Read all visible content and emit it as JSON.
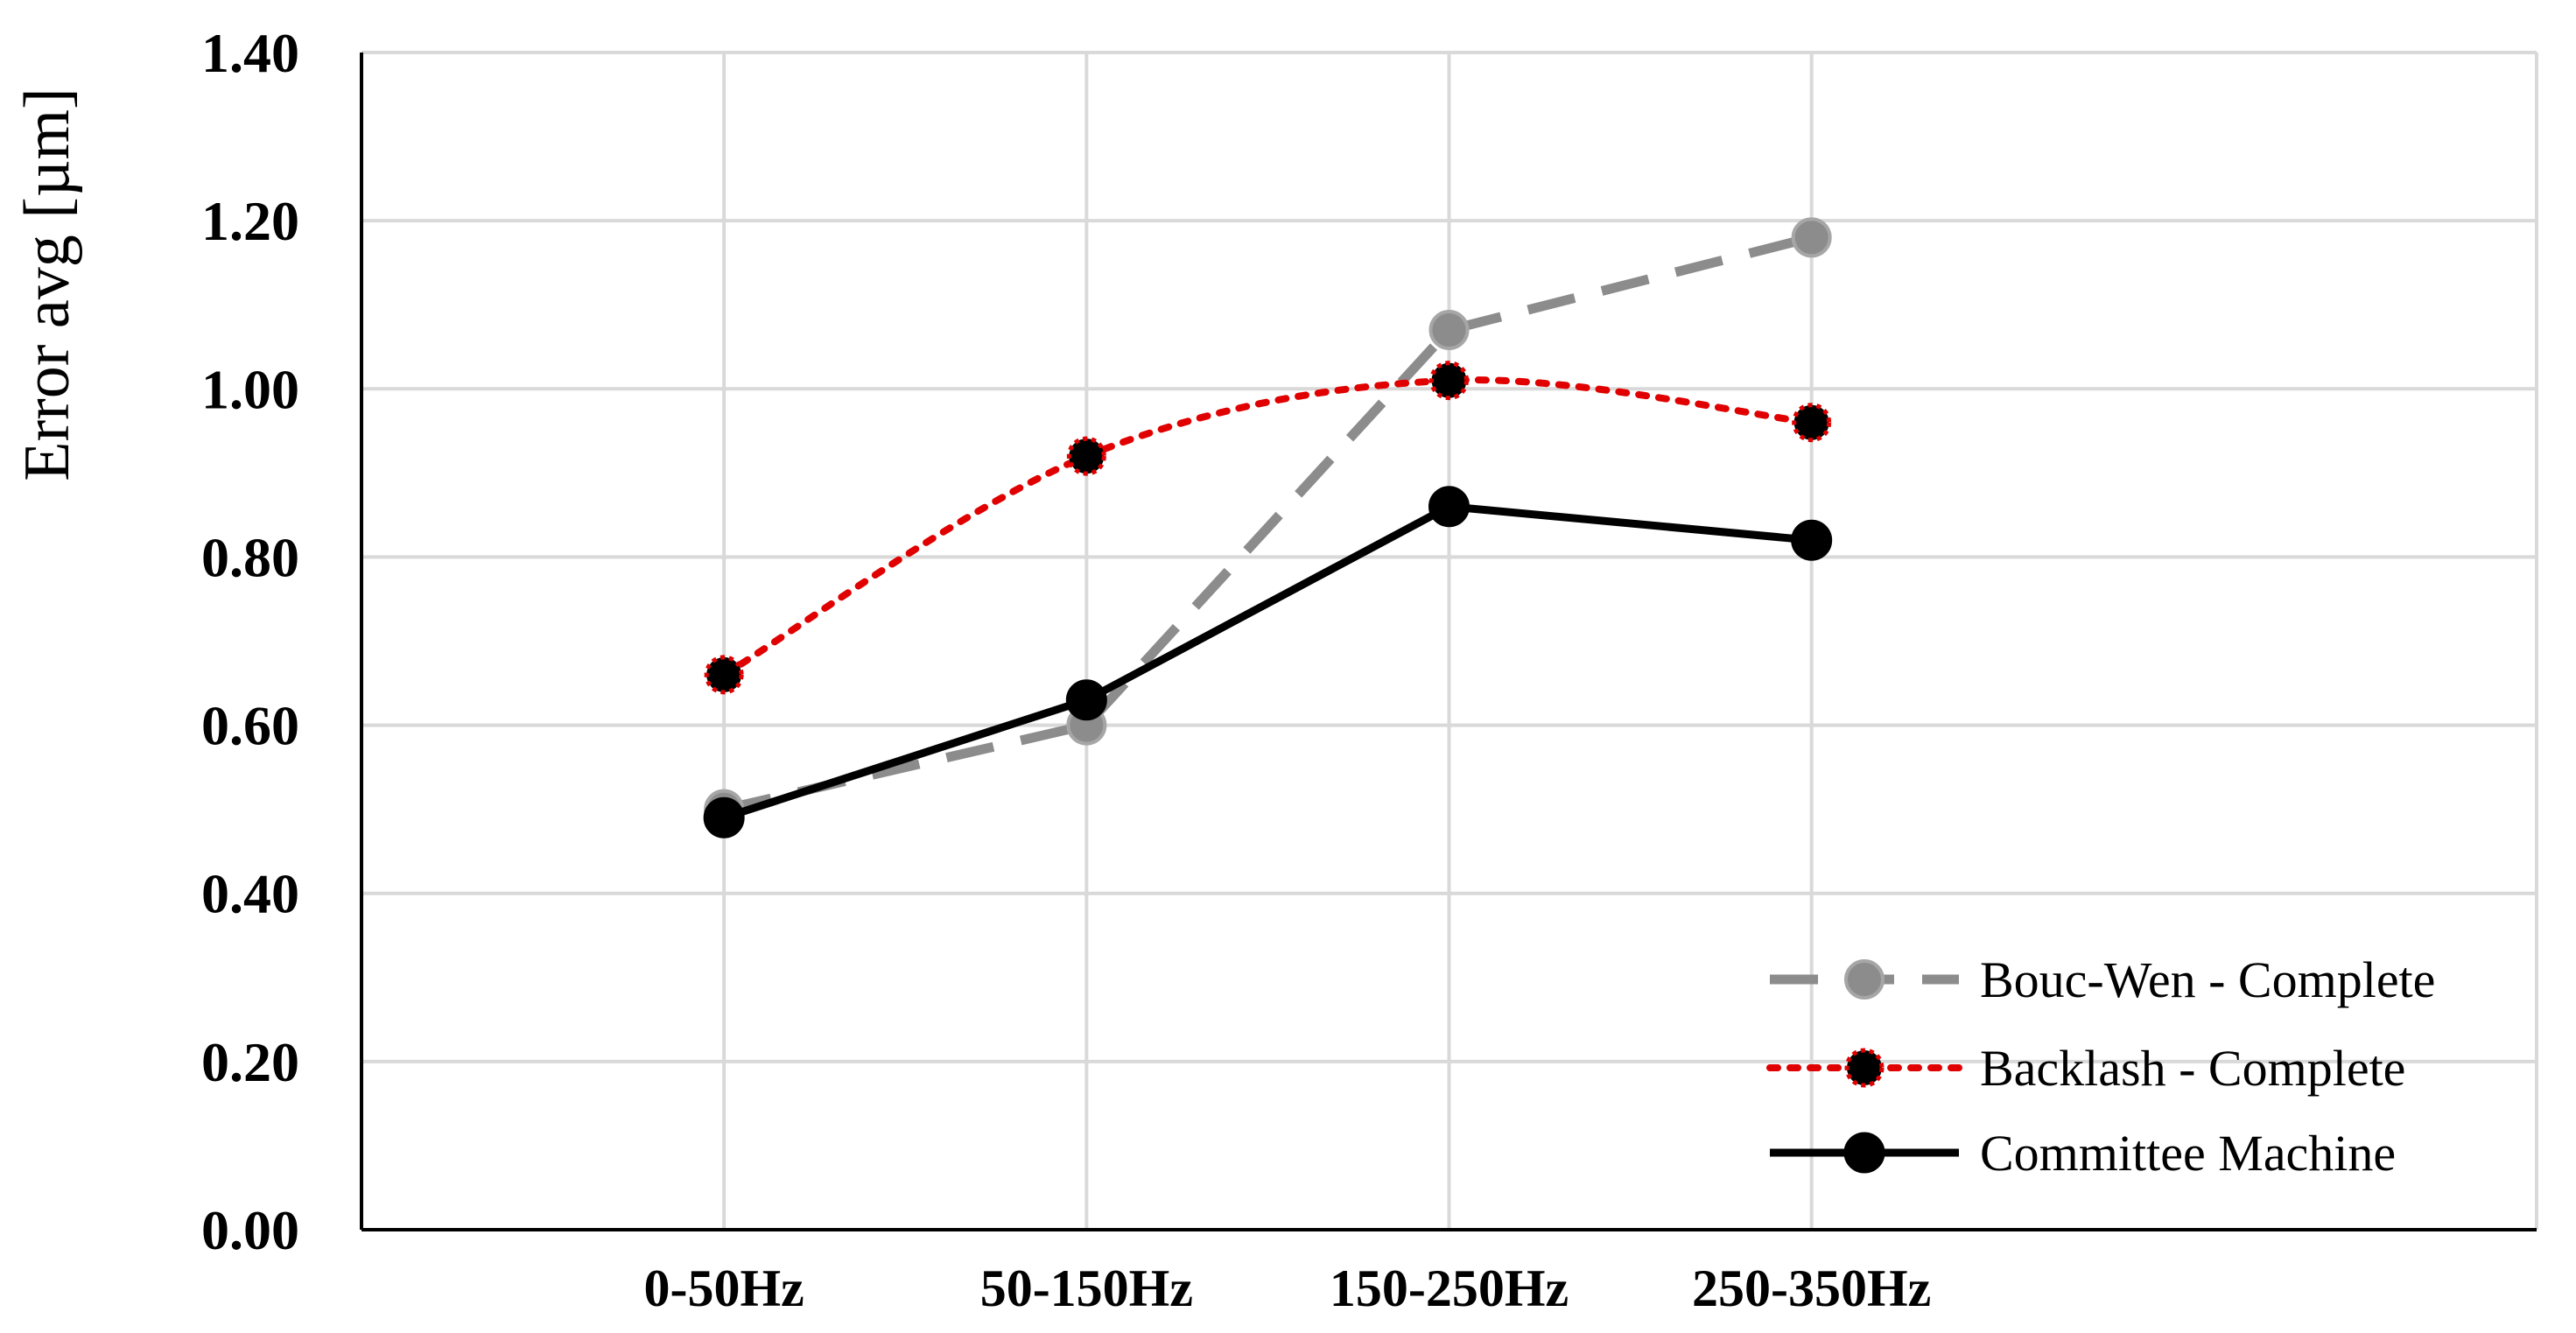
{
  "chart_data": {
    "type": "line",
    "title": "",
    "xlabel": "",
    "ylabel": "Error avg [µm]",
    "categories": [
      "0-50Hz",
      "50-150Hz",
      "150-250Hz",
      "250-350Hz"
    ],
    "ylim": [
      0,
      1.4
    ],
    "yticks": [
      "0.00",
      "0.20",
      "0.40",
      "0.60",
      "0.80",
      "1.00",
      "1.20",
      "1.40"
    ],
    "grid": true,
    "legend_position": "bottom-right",
    "series": [
      {
        "name": "Bouc-Wen - Complete",
        "values": [
          0.5,
          0.6,
          1.07,
          1.18
        ],
        "color": "#8c8c8c",
        "style": "dashed",
        "marker_fill": "#8c8c8c"
      },
      {
        "name": "Backlash - Complete",
        "values": [
          0.66,
          0.92,
          1.01,
          0.96
        ],
        "color": "#e00000",
        "style": "dotted",
        "marker_fill": "#000000"
      },
      {
        "name": "Committee Machine",
        "values": [
          0.49,
          0.63,
          0.86,
          0.82
        ],
        "color": "#000000",
        "style": "solid",
        "marker_fill": "#000000"
      }
    ]
  }
}
